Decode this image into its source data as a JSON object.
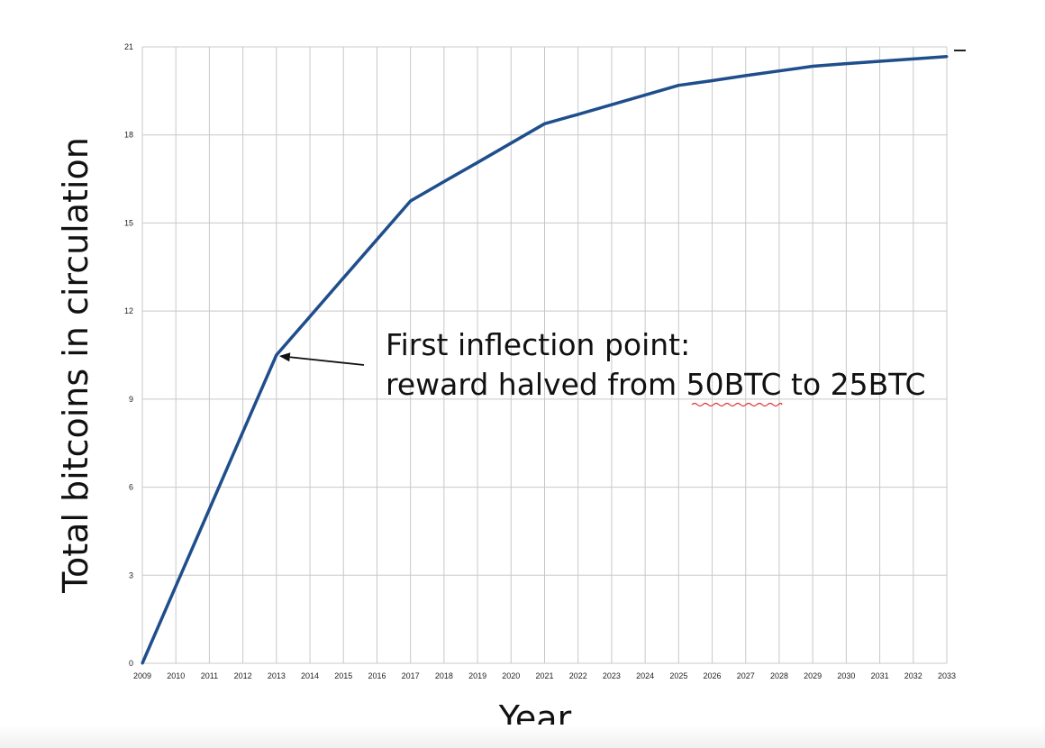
{
  "chart_data": {
    "type": "line",
    "title": "",
    "xlabel": "Year",
    "ylabel": "Total bitcoins in circulation",
    "x": [
      2009,
      2010,
      2011,
      2012,
      2013,
      2014,
      2015,
      2016,
      2017,
      2018,
      2019,
      2020,
      2021,
      2022,
      2023,
      2024,
      2025,
      2026,
      2027,
      2028,
      2029,
      2030,
      2031,
      2032,
      2033
    ],
    "x_tick_labels": [
      "2009",
      "2010",
      "2011",
      "2012",
      "2013",
      "2014",
      "2015",
      "2016",
      "2017",
      "2018",
      "2019",
      "2020",
      "2021",
      "2022",
      "2023",
      "2024",
      "2025",
      "2026",
      "2027",
      "2028",
      "2029",
      "2030",
      "2031",
      "2032",
      "2033"
    ],
    "y_ticks": [
      0,
      3,
      6,
      9,
      12,
      15,
      18,
      21
    ],
    "xlim": [
      2009,
      2033
    ],
    "ylim": [
      0,
      21
    ],
    "grid": true,
    "legend": "none",
    "series": [
      {
        "values": [
          0,
          2.63,
          5.25,
          7.88,
          10.5,
          11.81,
          13.13,
          14.44,
          15.75,
          16.41,
          17.06,
          17.72,
          18.38,
          18.7,
          19.03,
          19.36,
          19.69,
          19.85,
          20.02,
          20.18,
          20.34,
          20.43,
          20.51,
          20.59,
          20.67
        ],
        "color": "#1f4e8c"
      }
    ],
    "annotations": [
      {
        "lines": [
          "First inflection point:",
          "reward halved from 50BTC to 25BTC"
        ],
        "target_x": 2013,
        "target_y": 10.5
      }
    ]
  }
}
